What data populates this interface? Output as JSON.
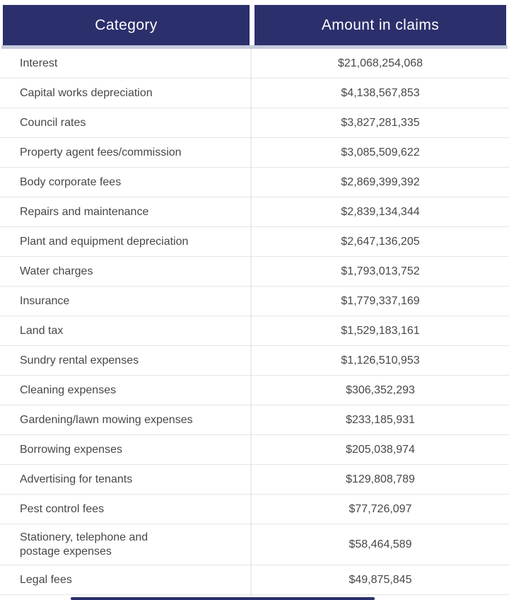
{
  "table": {
    "columns": {
      "category_label": "Category",
      "amount_label": "Amount in claims"
    },
    "rows": [
      {
        "category": "Interest",
        "amount": "$21,068,254,068"
      },
      {
        "category": "Capital works depreciation",
        "amount": "$4,138,567,853"
      },
      {
        "category": "Council rates",
        "amount": "$3,827,281,335"
      },
      {
        "category": "Property agent fees/commission",
        "amount": "$3,085,509,622"
      },
      {
        "category": "Body corporate fees",
        "amount": "$2,869,399,392"
      },
      {
        "category": "Repairs and maintenance",
        "amount": "$2,839,134,344"
      },
      {
        "category": "Plant and equipment depreciation",
        "amount": "$2,647,136,205"
      },
      {
        "category": "Water charges",
        "amount": "$1,793,013,752"
      },
      {
        "category": "Insurance",
        "amount": "$1,779,337,169"
      },
      {
        "category": "Land tax",
        "amount": "$1,529,183,161"
      },
      {
        "category": "Sundry rental expenses",
        "amount": "$1,126,510,953"
      },
      {
        "category": "Cleaning expenses",
        "amount": "$306,352,293"
      },
      {
        "category": "Gardening/lawn mowing expenses",
        "amount": "$233,185,931"
      },
      {
        "category": "Borrowing expenses",
        "amount": "$205,038,974"
      },
      {
        "category": "Advertising for tenants",
        "amount": "$129,808,789"
      },
      {
        "category": "Pest control fees",
        "amount": "$77,726,097"
      },
      {
        "category": "Stationery, telephone and\npostage expenses",
        "amount": "$58,464,589"
      },
      {
        "category": "Legal fees",
        "amount": "$49,875,845"
      }
    ],
    "colors": {
      "header_bg": "#2b2f6c",
      "header_text": "#ffffff",
      "header_shadow": "#c6cbdc",
      "body_text": "#474747",
      "row_separator": "#e5e5e5",
      "column_divider": "#ededed"
    }
  },
  "chart_data": {
    "type": "table",
    "title": "",
    "columns": [
      "Category",
      "Amount in claims"
    ],
    "categories": [
      "Interest",
      "Capital works depreciation",
      "Council rates",
      "Property agent fees/commission",
      "Body corporate fees",
      "Repairs and maintenance",
      "Plant and equipment depreciation",
      "Water charges",
      "Insurance",
      "Land tax",
      "Sundry rental expenses",
      "Cleaning expenses",
      "Gardening/lawn mowing expenses",
      "Borrowing expenses",
      "Advertising for tenants",
      "Pest control fees",
      "Stationery, telephone and postage expenses",
      "Legal fees"
    ],
    "values": [
      21068254068,
      4138567853,
      3827281335,
      3085509622,
      2869399392,
      2839134344,
      2647136205,
      1793013752,
      1779337169,
      1529183161,
      1126510953,
      306352293,
      233185931,
      205038974,
      129808789,
      77726097,
      58464589,
      49875845
    ],
    "value_unit": "USD claims"
  }
}
